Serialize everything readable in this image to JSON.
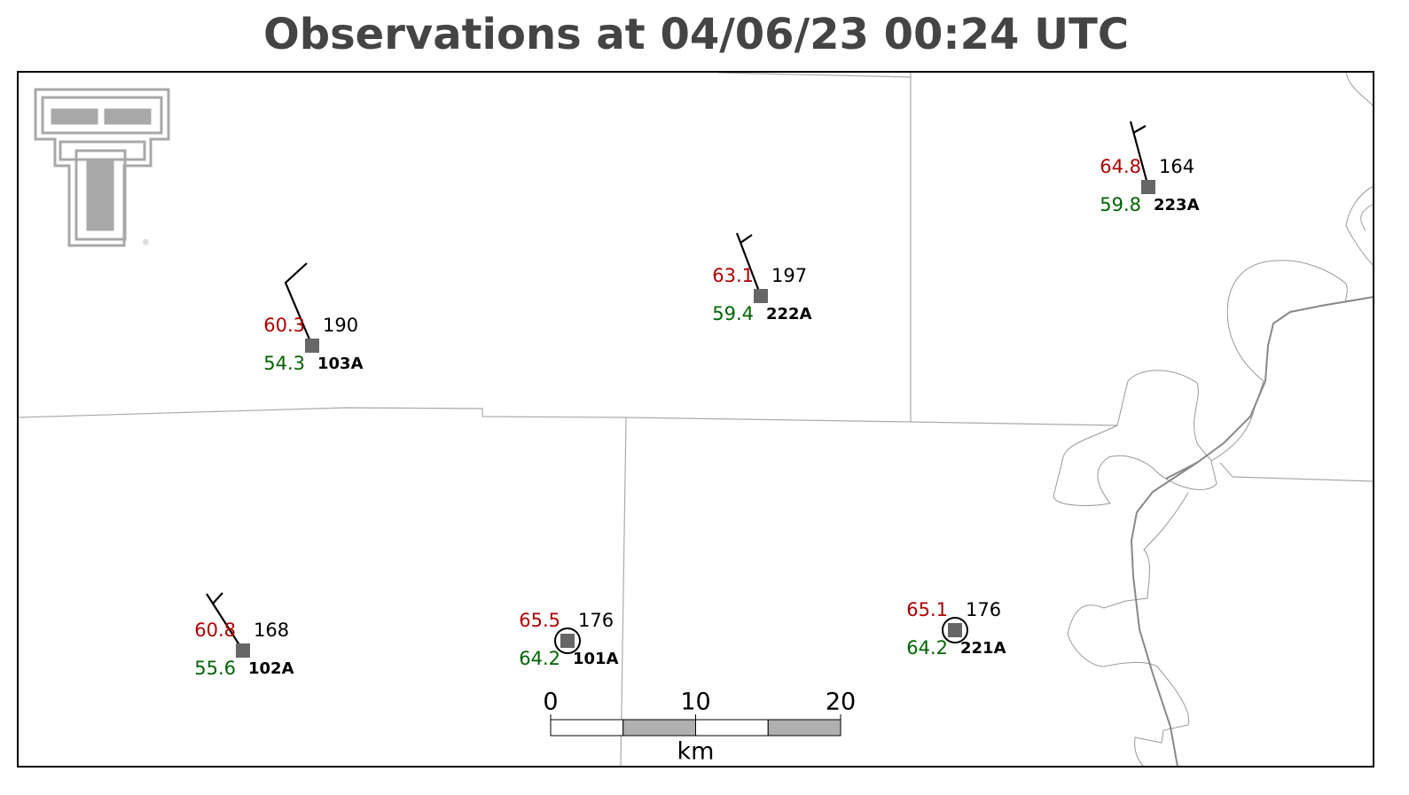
{
  "title": "Observations at 04/06/23 00:24 UTC",
  "stations": [
    {
      "id": "103A",
      "temperature": 60.3,
      "dewpoint": 54.3,
      "pressure": 190
    },
    {
      "id": "222A",
      "temperature": 63.1,
      "dewpoint": 59.4,
      "pressure": 197
    },
    {
      "id": "223A",
      "temperature": 64.8,
      "dewpoint": 59.8,
      "pressure": 164
    },
    {
      "id": "102A",
      "temperature": 60.8,
      "dewpoint": 55.6,
      "pressure": 168
    },
    {
      "id": "101A",
      "temperature": 65.5,
      "dewpoint": 64.2,
      "pressure": 176
    },
    {
      "id": "221A",
      "temperature": 65.1,
      "dewpoint": 64.2,
      "pressure": 176
    }
  ],
  "scale_bar": {
    "ticks": [
      0,
      10,
      20
    ],
    "unit": "km"
  }
}
